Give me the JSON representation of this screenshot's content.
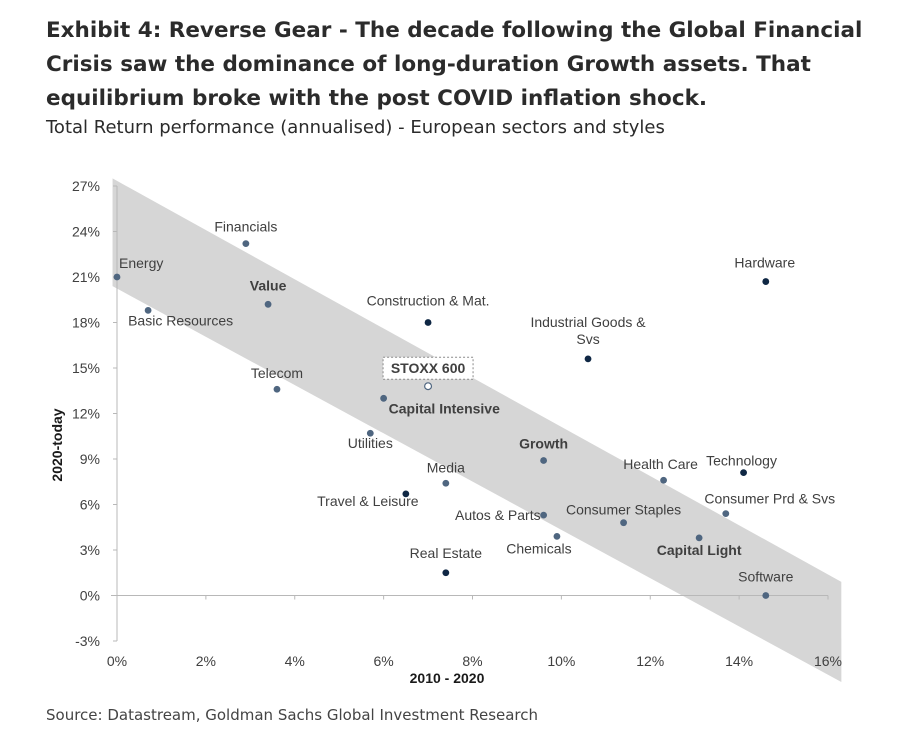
{
  "title": "Exhibit 4: Reverse Gear - The decade following the Global Financial Crisis saw the dominance of long-duration Growth assets. That equilibrium broke with the post COVID inflation shock.",
  "subtitle": "Total Return performance (annualised) - European sectors and styles",
  "source": "Source: Datastream, Goldman Sachs Global Investment Research",
  "colors": {
    "band": "#d6d6d6",
    "point_sector": "#4f6680",
    "point_style": "#0f2744",
    "axis": "#b8b8b8",
    "text": "#404040"
  },
  "chart_data": {
    "type": "scatter",
    "title": "Total Return performance (annualised) - European sectors and styles",
    "xlabel": "2010 - 2020",
    "ylabel": "2020-today",
    "xlim": [
      0,
      16
    ],
    "ylim": [
      -3,
      27
    ],
    "xticks": [
      0,
      2,
      4,
      6,
      8,
      10,
      12,
      14,
      16
    ],
    "yticks": [
      -3,
      0,
      3,
      6,
      9,
      12,
      15,
      18,
      21,
      24,
      27
    ],
    "xtick_labels": [
      "0%",
      "2%",
      "4%",
      "6%",
      "8%",
      "10%",
      "12%",
      "14%",
      "16%"
    ],
    "ytick_labels": [
      "-3%",
      "0%",
      "3%",
      "6%",
      "9%",
      "12%",
      "15%",
      "18%",
      "21%",
      "24%",
      "27%"
    ],
    "band": {
      "upper": [
        [
          -0.1,
          27.5
        ],
        [
          16.3,
          0.9
        ]
      ],
      "lower": [
        [
          -0.1,
          20.4
        ],
        [
          16.3,
          -5.7
        ]
      ]
    },
    "points": [
      {
        "label": "Energy",
        "x": 0.0,
        "y": 21.0,
        "bold": false,
        "dark": false
      },
      {
        "label": "Basic Resources",
        "x": 0.7,
        "y": 18.8,
        "bold": false,
        "dark": false
      },
      {
        "label": "Financials",
        "x": 2.9,
        "y": 23.2,
        "bold": false,
        "dark": false
      },
      {
        "label": "Value",
        "x": 3.4,
        "y": 19.2,
        "bold": true,
        "dark": false
      },
      {
        "label": "Telecom",
        "x": 3.6,
        "y": 13.6,
        "bold": false,
        "dark": false
      },
      {
        "label": "Construction & Mat.",
        "x": 7.0,
        "y": 18.0,
        "bold": false,
        "dark": true
      },
      {
        "label": "STOXX 600",
        "x": 7.0,
        "y": 13.8,
        "bold": true,
        "dark": false,
        "hollow": true,
        "boxed": true
      },
      {
        "label": "Capital Intensive",
        "x": 6.0,
        "y": 13.0,
        "bold": true,
        "dark": false
      },
      {
        "label": "Utilities",
        "x": 5.7,
        "y": 10.7,
        "bold": false,
        "dark": false
      },
      {
        "label": "Media",
        "x": 7.4,
        "y": 7.4,
        "bold": false,
        "dark": false
      },
      {
        "label": "Travel & Leisure",
        "x": 6.5,
        "y": 6.7,
        "bold": false,
        "dark": true
      },
      {
        "label": "Real Estate",
        "x": 7.4,
        "y": 1.5,
        "bold": false,
        "dark": true
      },
      {
        "label": "Industrial Goods & Svs",
        "x": 10.6,
        "y": 15.6,
        "bold": false,
        "dark": true
      },
      {
        "label": "Growth",
        "x": 9.6,
        "y": 8.9,
        "bold": true,
        "dark": false
      },
      {
        "label": "Autos & Parts",
        "x": 9.6,
        "y": 5.3,
        "bold": false,
        "dark": false
      },
      {
        "label": "Chemicals",
        "x": 9.9,
        "y": 3.9,
        "bold": false,
        "dark": false
      },
      {
        "label": "Consumer Staples",
        "x": 11.4,
        "y": 4.8,
        "bold": false,
        "dark": false
      },
      {
        "label": "Health Care",
        "x": 12.3,
        "y": 7.6,
        "bold": false,
        "dark": false
      },
      {
        "label": "Capital Light",
        "x": 13.1,
        "y": 3.8,
        "bold": true,
        "dark": false
      },
      {
        "label": "Technology",
        "x": 14.1,
        "y": 8.1,
        "bold": false,
        "dark": true
      },
      {
        "label": "Consumer Prd & Svs",
        "x": 13.7,
        "y": 5.4,
        "bold": false,
        "dark": false
      },
      {
        "label": "Hardware",
        "x": 14.6,
        "y": 20.7,
        "bold": false,
        "dark": true
      },
      {
        "label": "Software",
        "x": 14.6,
        "y": 0.0,
        "bold": false,
        "dark": false
      }
    ]
  }
}
